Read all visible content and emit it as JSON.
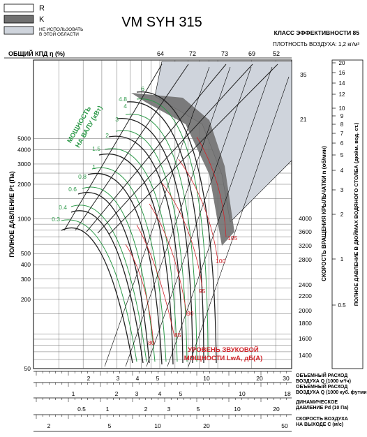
{
  "chart_data": {
    "type": "line",
    "title": "VM SYH 315",
    "efficiency_class": "КЛАСС ЭФФЕКТИВНОСТИ 85",
    "air_density": "ПЛОТНОСТЬ ВОЗДУХА: 1,2 кг/м³",
    "legend": [
      {
        "key": "R",
        "label": "R",
        "color": "#ffffff"
      },
      {
        "key": "K",
        "label": "K",
        "color": "#707070"
      },
      {
        "key": "N",
        "label": "НЕ ИСПОЛЬЗОВАТЬ В ЭТОЙ ОБЛАСТИ",
        "color": "#cfd4dc"
      }
    ],
    "colors": {
      "speed": "#222222",
      "power": "#2e9a4a",
      "noise": "#d0252b",
      "shade": "#cfd4dc",
      "k_zone": "#707070"
    },
    "efficiency_label": "ОБЩИЙ КПД η (%)",
    "efficiency_values": [
      "64",
      "72",
      "73",
      "69",
      "52"
    ],
    "ylabel": "ПОЛНОЕ ДАВЛЕНИЕ Pt (Па)",
    "y_ticks": [
      "5000",
      "4000",
      "3000",
      "2000",
      "1000",
      "500",
      "400",
      "300",
      "200",
      "50"
    ],
    "ylim": [
      50,
      5000
    ],
    "right_axis1_label": "СКОРОСТЬ ВРАЩЕНИЯ КРЫЛЬЧАТКИ n (об/мин)",
    "rpm_ticks": [
      "4000",
      "3600",
      "3200",
      "2800",
      "2400",
      "2200",
      "2000",
      "1800",
      "1600",
      "1400"
    ],
    "rpm_extra": [
      "35",
      "21"
    ],
    "right_axis2_label": "ПОЛНОЕ ДАВЛЕНИЕ В ДЮЙМАХ ВОДЯНОГО СТОЛБА (дюйм. вод. ст.)",
    "inch_ticks": [
      "20",
      "16",
      "14",
      "12",
      "10",
      "9",
      "8",
      "7",
      "6",
      "5",
      "4",
      "3",
      "2",
      "1",
      "0.5"
    ],
    "power_label": "МОЩНОСТЬ НА ВАЛУ (кВт)",
    "power_values": [
      "6",
      "4.8",
      "4",
      "3",
      "2",
      "1.5",
      "1",
      "0.8",
      "0.6",
      "0.4",
      "0.3"
    ],
    "sound_label": "УРОВЕНЬ ЗВУКОВОЙ МОЩНОСТИ LwA, дБ(A)",
    "sound_values": [
      "80",
      "85",
      "90",
      "95",
      "100",
      "105"
    ],
    "xlim": [
      1,
      30
    ],
    "bottom_axes": [
      {
        "label_line1": "ОБЪЕМНЫЙ РАСХОД",
        "label_line2": "ВОЗДУХА Q (1000 м³/ч)",
        "ticks": [
          "2",
          "3",
          "4",
          "5",
          "10",
          "20",
          "30"
        ]
      },
      {
        "label_line1": "ОБЪЕМНЫЙ РАСХОД",
        "label_line2": "ВОЗДУХА Q (1000 куб. футмин)",
        "ticks": [
          "1",
          "2",
          "3",
          "4",
          "5",
          "10",
          "18"
        ]
      },
      {
        "label_line1": "ДИНАМИЧЕСКОЕ",
        "label_line2": "ДАВЛЕНИЕ Pd (10 Па)",
        "ticks": [
          "0.5",
          "1",
          "2",
          "3",
          "5",
          "10",
          "20"
        ]
      },
      {
        "label_line1": "СКОРОСТЬ ВОЗДУХА",
        "label_line2": "НА ВЫХОДЕ С (м/с)",
        "ticks": [
          "2",
          "5",
          "10",
          "20",
          "50"
        ]
      }
    ]
  }
}
